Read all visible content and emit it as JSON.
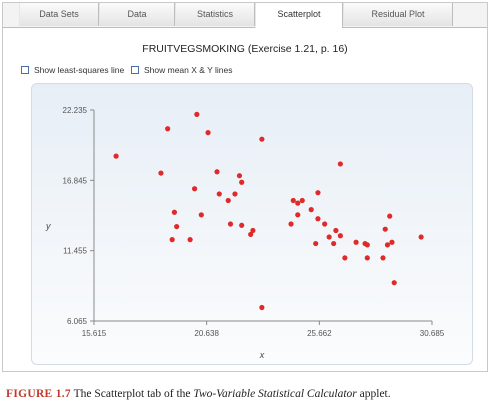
{
  "tabs": [
    {
      "label": "Data Sets",
      "active": false
    },
    {
      "label": "Data",
      "active": false
    },
    {
      "label": "Statistics",
      "active": false
    },
    {
      "label": "Scatterplot",
      "active": true
    },
    {
      "label": "Residual Plot",
      "active": false
    }
  ],
  "title": "FRUITVEGSMOKING (Exercise 1.21, p. 16)",
  "options": {
    "least_squares": "Show least-squares line",
    "mean_lines": "Show mean X & Y lines"
  },
  "chart_data": {
    "type": "scatter",
    "xlabel": "x",
    "ylabel": "y",
    "xlim": [
      15.615,
      30.685
    ],
    "ylim": [
      6.065,
      22.235
    ],
    "xticks": [
      "15.615",
      "20.638",
      "25.662",
      "30.685"
    ],
    "yticks": [
      "6.065",
      "11.455",
      "16.845",
      "22.235"
    ],
    "grid": false,
    "points": [
      [
        16.6,
        18.7
      ],
      [
        18.6,
        17.4
      ],
      [
        18.9,
        20.8
      ],
      [
        19.1,
        12.3
      ],
      [
        19.2,
        14.4
      ],
      [
        19.3,
        13.3
      ],
      [
        19.9,
        12.3
      ],
      [
        20.1,
        16.2
      ],
      [
        20.2,
        21.9
      ],
      [
        20.4,
        14.2
      ],
      [
        20.7,
        20.5
      ],
      [
        21.1,
        17.5
      ],
      [
        21.2,
        15.8
      ],
      [
        21.6,
        15.3
      ],
      [
        21.7,
        13.5
      ],
      [
        21.9,
        15.8
      ],
      [
        22.1,
        17.2
      ],
      [
        22.2,
        16.7
      ],
      [
        22.2,
        13.4
      ],
      [
        22.6,
        12.7
      ],
      [
        22.7,
        13.0
      ],
      [
        23.1,
        20.0
      ],
      [
        23.1,
        7.1
      ],
      [
        24.4,
        13.5
      ],
      [
        24.5,
        15.3
      ],
      [
        24.7,
        14.2
      ],
      [
        24.7,
        15.1
      ],
      [
        24.9,
        15.3
      ],
      [
        25.3,
        14.6
      ],
      [
        25.5,
        12.0
      ],
      [
        25.6,
        13.9
      ],
      [
        25.6,
        15.9
      ],
      [
        25.9,
        13.5
      ],
      [
        26.1,
        12.5
      ],
      [
        26.3,
        12.0
      ],
      [
        26.4,
        13.0
      ],
      [
        26.6,
        12.6
      ],
      [
        26.6,
        18.1
      ],
      [
        26.8,
        10.9
      ],
      [
        27.3,
        12.1
      ],
      [
        27.7,
        12.0
      ],
      [
        27.8,
        11.9
      ],
      [
        27.8,
        10.9
      ],
      [
        28.5,
        10.9
      ],
      [
        28.6,
        13.1
      ],
      [
        28.7,
        11.9
      ],
      [
        28.8,
        14.1
      ],
      [
        28.9,
        12.1
      ],
      [
        29.0,
        9.0
      ],
      [
        30.2,
        12.5
      ]
    ],
    "point_color": "#e02a2a"
  },
  "caption": {
    "figure_label": "FIGURE 1.7",
    "text_1": " The Scatterplot tab of the ",
    "text_em": "Two-Variable Statistical Calculator",
    "text_2": " applet."
  }
}
